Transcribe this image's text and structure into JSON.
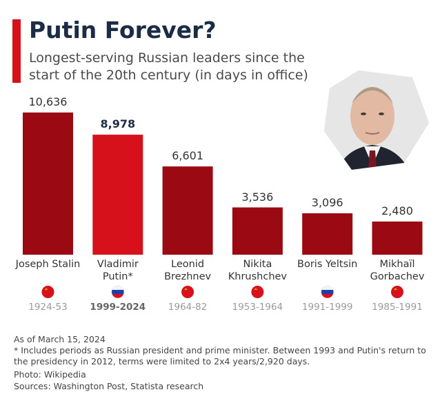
{
  "chart_data": {
    "type": "bar",
    "title": "Putin Forever?",
    "subtitle": "Longest-serving Russian leaders since the start of the 20th century (in days in office)",
    "categories": [
      "Joseph Stalin",
      "Vladimir Putin*",
      "Leonid Brezhnev",
      "Nikita Khrushchev",
      "Boris Yeltsin",
      "Mikhaïl Gorbachev"
    ],
    "periods": [
      "1924-53",
      "1999-2024",
      "1964-82",
      "1953-1964",
      "1991-1999",
      "1985-1991"
    ],
    "values": [
      10636,
      8978,
      6601,
      3536,
      3096,
      2480
    ],
    "value_labels": [
      "10,636",
      "8,978",
      "6,601",
      "3,536",
      "3,096",
      "2,480"
    ],
    "colors": [
      "#9b0a12",
      "#d7111b",
      "#9b0a12",
      "#9b0a12",
      "#9b0a12",
      "#9b0a12"
    ],
    "notes": [
      "As of March 15, 2024",
      "* Includes periods as Russian president and prime minister. Between 1993 and Putin's return to the presidency in 2012, terms were limited to 2x4 years/2,920 days.",
      "Photo: Wikipedia",
      "Sources: Washington Post, Statista research"
    ]
  }
}
